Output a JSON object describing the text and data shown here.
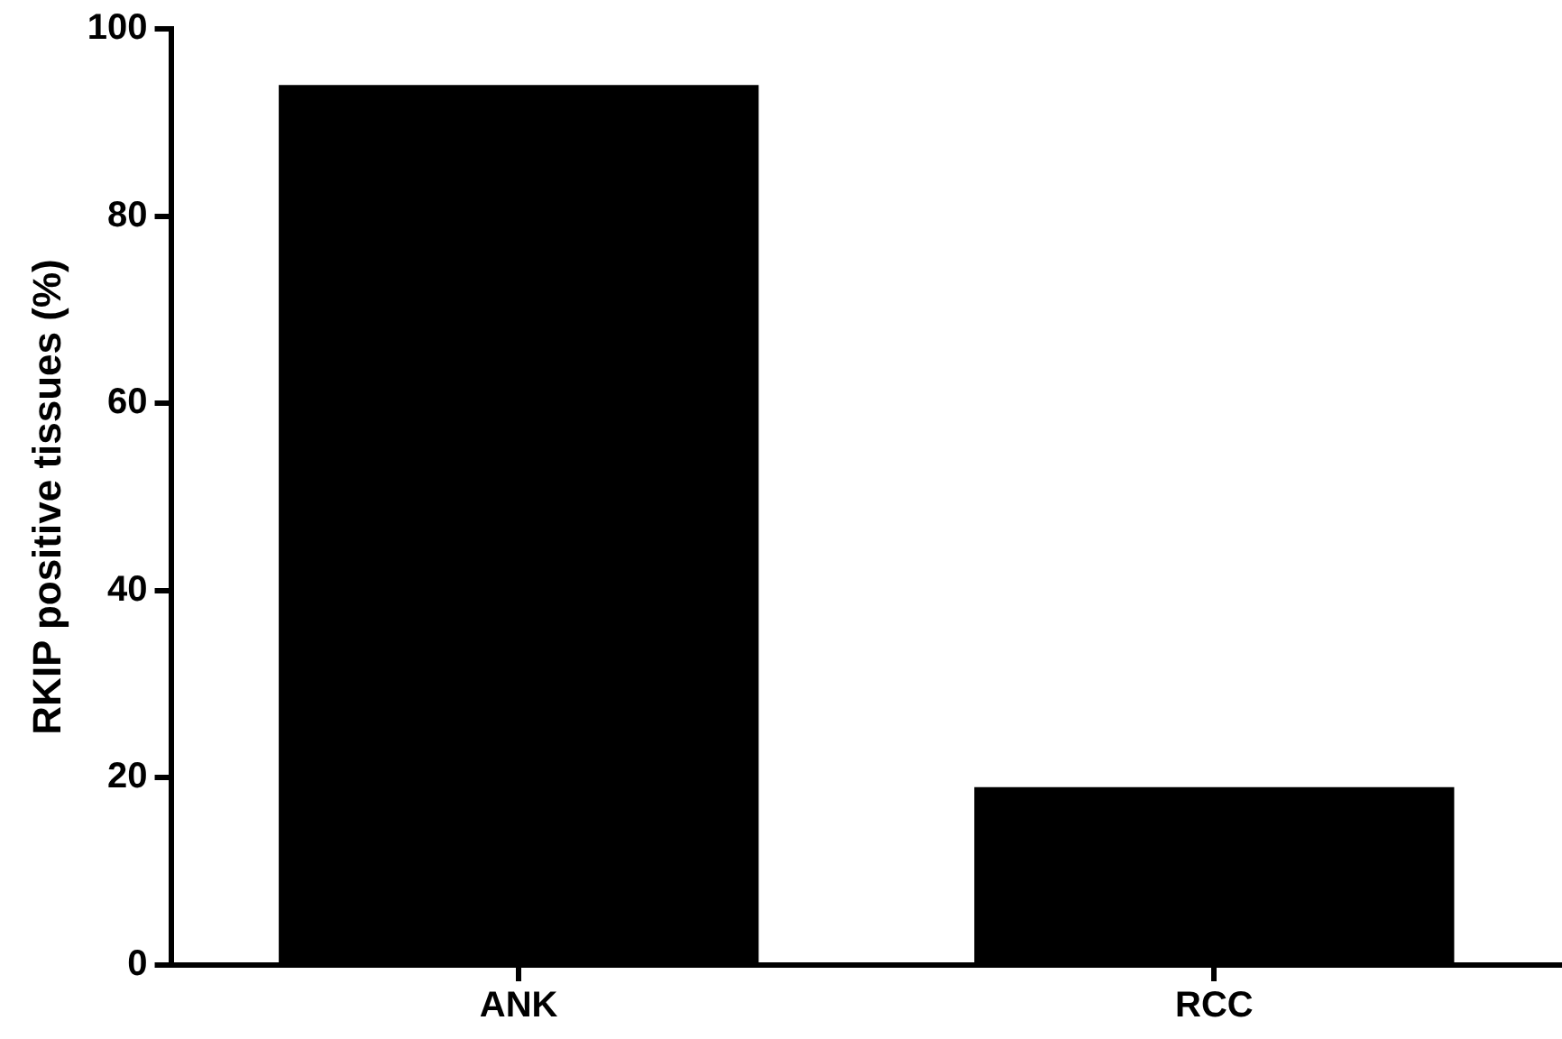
{
  "chart_data": {
    "type": "bar",
    "ylabel": "RKIP positive tissues (%)",
    "categories": [
      "ANK",
      "RCC"
    ],
    "values": [
      94,
      19
    ],
    "color": "#000000",
    "ylim": [
      0,
      100
    ],
    "yticks": [
      0,
      20,
      40,
      60,
      80,
      100
    ],
    "grid": false,
    "legend": false
  }
}
